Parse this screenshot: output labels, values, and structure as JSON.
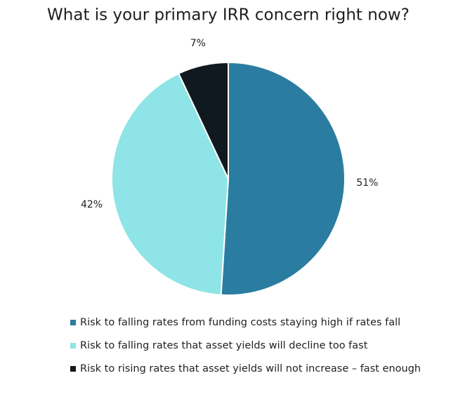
{
  "chart_data": {
    "type": "pie",
    "title": "What is your primary IRR concern right now?",
    "categories": [
      "Risk to falling rates from funding costs staying high if rates fall",
      "Risk to falling rates that asset yields will decline too fast",
      "Risk to rising rates that asset yields will not increase – fast enough"
    ],
    "values": [
      51,
      42,
      7
    ],
    "value_labels": [
      "51%",
      "42%",
      "7%"
    ],
    "colors": [
      "#2a7da0",
      "#8ee4e6",
      "#111920"
    ]
  }
}
